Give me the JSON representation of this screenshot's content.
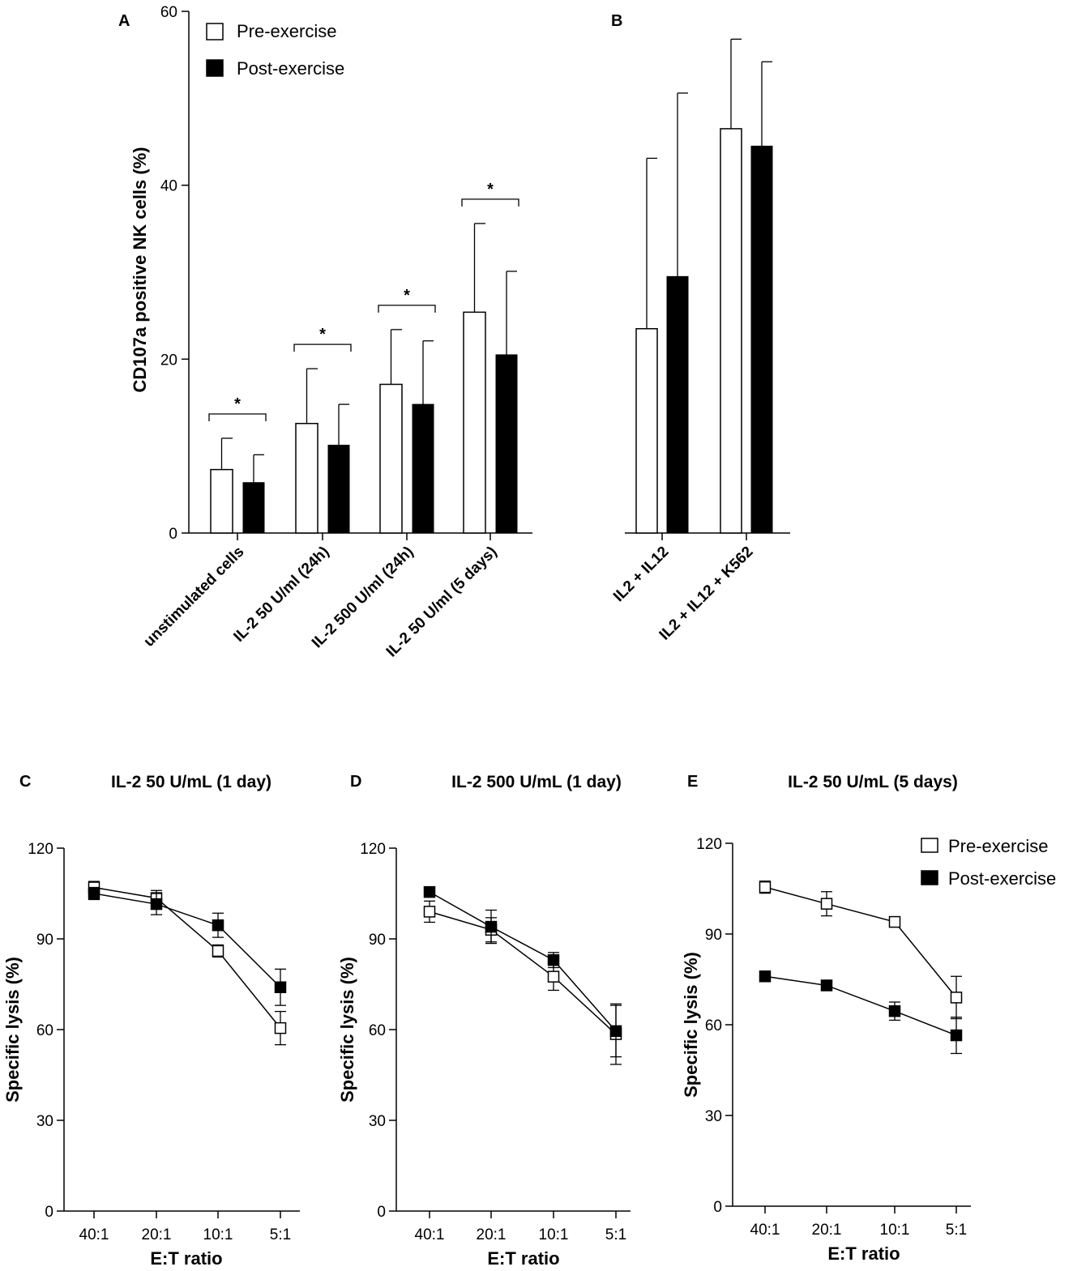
{
  "legend": {
    "pre": "Pre-exercise",
    "post": "Post-exercise"
  },
  "panel_labels": {
    "A": "A",
    "B": "B",
    "C": "C",
    "D": "D",
    "E": "E"
  },
  "chart_data": [
    {
      "panel": "A",
      "type": "bar",
      "ylabel": "CD107a positive NK cells (%)",
      "ylim": [
        0,
        60
      ],
      "yticks": [
        "0",
        "20",
        "40",
        "60"
      ],
      "categories": [
        "unstimulated cells",
        "IL-2 50 U/ml (24h)",
        "IL-2 500 U/ml (24h)",
        "IL-2 50 U/ml (5 days)"
      ],
      "series": [
        {
          "name": "Pre-exercise",
          "values": [
            7.3,
            12.6,
            17.1,
            25.4
          ],
          "error": [
            3.6,
            6.3,
            6.3,
            10.2
          ]
        },
        {
          "name": "Post-exercise",
          "values": [
            5.8,
            10.1,
            14.8,
            20.5
          ],
          "error": [
            3.2,
            4.7,
            7.3,
            9.6
          ]
        }
      ],
      "significance": [
        "*",
        "*",
        "*",
        "*"
      ]
    },
    {
      "panel": "B",
      "type": "bar",
      "ylim": [
        0,
        60
      ],
      "categories": [
        "IL2 + IL12",
        "IL2 + IL12 + K562"
      ],
      "series": [
        {
          "name": "Pre-exercise",
          "values": [
            23.5,
            46.5
          ],
          "error": [
            19.6,
            10.3
          ]
        },
        {
          "name": "Post-exercise",
          "values": [
            29.5,
            44.5
          ],
          "error": [
            21.1,
            9.7
          ]
        }
      ]
    },
    {
      "panel": "C",
      "type": "line",
      "title": "IL-2 50 U/mL (1 day)",
      "xlabel": "E:T ratio",
      "ylabel": "Specific lysis (%)",
      "ylim": [
        0,
        120
      ],
      "yticks": [
        "0",
        "30",
        "60",
        "90",
        "120"
      ],
      "x": [
        "40:1",
        "20:1",
        "10:1",
        "5:1"
      ],
      "series": [
        {
          "name": "Pre-exercise",
          "values": [
            107,
            103.5,
            86,
            60.5
          ],
          "error": [
            2,
            2.5,
            2,
            5.5
          ]
        },
        {
          "name": "Post-exercise",
          "values": [
            105,
            101.5,
            94.5,
            74
          ],
          "error": [
            2,
            3.5,
            4,
            6
          ]
        }
      ]
    },
    {
      "panel": "D",
      "type": "line",
      "title": "IL-2 500 U/mL (1 day)",
      "xlabel": "E:T ratio",
      "ylabel": "Specific lysis (%)",
      "ylim": [
        0,
        120
      ],
      "yticks": [
        "0",
        "30",
        "60",
        "90",
        "120"
      ],
      "x": [
        "40:1",
        "20:1",
        "10:1",
        "5:1"
      ],
      "series": [
        {
          "name": "Pre-exercise",
          "values": [
            99,
            93,
            77.5,
            58.5
          ],
          "error": [
            3.5,
            4,
            4.5,
            10
          ]
        },
        {
          "name": "Post-exercise",
          "values": [
            105.5,
            94,
            83,
            59.5
          ],
          "error": [
            1.5,
            5.5,
            2.5,
            8.5
          ]
        }
      ]
    },
    {
      "panel": "E",
      "type": "line",
      "title": "IL-2 50 U/mL (5 days)",
      "xlabel": "E:T ratio",
      "ylabel": "Specific lysis (%)",
      "ylim": [
        0,
        120
      ],
      "yticks": [
        "0",
        "30",
        "60",
        "90",
        "120"
      ],
      "x": [
        "40:1",
        "20:1",
        "10:1",
        "5:1"
      ],
      "series": [
        {
          "name": "Pre-exercise",
          "values": [
            105.5,
            100,
            94,
            69
          ],
          "error": [
            2,
            4,
            1,
            7
          ]
        },
        {
          "name": "Post-exercise",
          "values": [
            76,
            73,
            64.5,
            56.5
          ],
          "error": [
            1,
            1,
            3,
            6
          ]
        }
      ]
    }
  ]
}
